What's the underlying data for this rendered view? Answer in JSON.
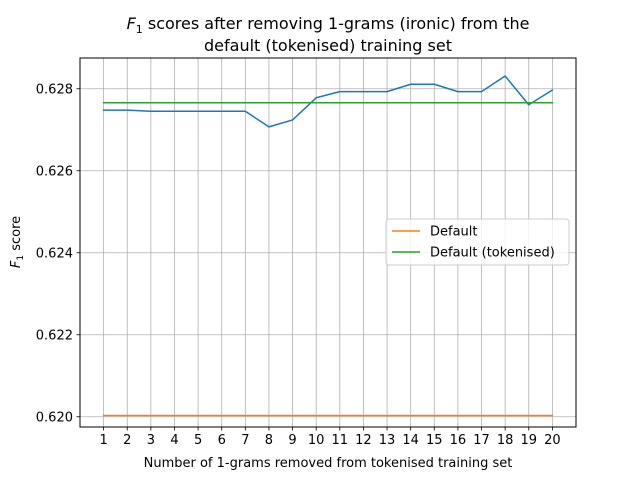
{
  "chart_data": {
    "type": "line",
    "title_prefix": "F",
    "title_subscript": "1",
    "title_line1_rest": " scores after removing 1-grams (ironic) from the",
    "title_line2": "default (tokenised) training set",
    "xlabel": "Number of 1-grams removed from tokenised training set",
    "ylabel_prefix": "F",
    "ylabel_subscript": "1",
    "ylabel_rest": " score",
    "x": [
      1,
      2,
      3,
      4,
      5,
      6,
      7,
      8,
      9,
      10,
      11,
      12,
      13,
      14,
      15,
      16,
      17,
      18,
      19,
      20
    ],
    "xticks": [
      "1",
      "2",
      "3",
      "4",
      "5",
      "6",
      "7",
      "8",
      "9",
      "10",
      "11",
      "12",
      "13",
      "14",
      "15",
      "16",
      "17",
      "18",
      "19",
      "20"
    ],
    "yticks": [
      "0.620",
      "0.622",
      "0.624",
      "0.626",
      "0.628"
    ],
    "ytick_values": [
      0.62,
      0.622,
      0.624,
      0.626,
      0.628
    ],
    "xlim": [
      0.0,
      21.0
    ],
    "ylim": [
      0.61975,
      0.62875
    ],
    "grid": true,
    "legend_position": "center-right",
    "series": [
      {
        "name": "",
        "color": "#1f77b4",
        "values": [
          0.62748,
          0.62748,
          0.62745,
          0.62745,
          0.62745,
          0.62745,
          0.62745,
          0.62707,
          0.62724,
          0.62778,
          0.62793,
          0.62793,
          0.62793,
          0.62811,
          0.62811,
          0.62793,
          0.62793,
          0.62831,
          0.62761,
          0.62797
        ]
      },
      {
        "name": "Default",
        "color": "#ff7f0e",
        "values": [
          0.62003,
          0.62003,
          0.62003,
          0.62003,
          0.62003,
          0.62003,
          0.62003,
          0.62003,
          0.62003,
          0.62003,
          0.62003,
          0.62003,
          0.62003,
          0.62003,
          0.62003,
          0.62003,
          0.62003,
          0.62003,
          0.62003,
          0.62003
        ]
      },
      {
        "name": "Default (tokenised)",
        "color": "#2ca02c",
        "values": [
          0.62766,
          0.62766,
          0.62766,
          0.62766,
          0.62766,
          0.62766,
          0.62766,
          0.62766,
          0.62766,
          0.62766,
          0.62766,
          0.62766,
          0.62766,
          0.62766,
          0.62766,
          0.62766,
          0.62766,
          0.62766,
          0.62766,
          0.62766
        ]
      }
    ]
  }
}
